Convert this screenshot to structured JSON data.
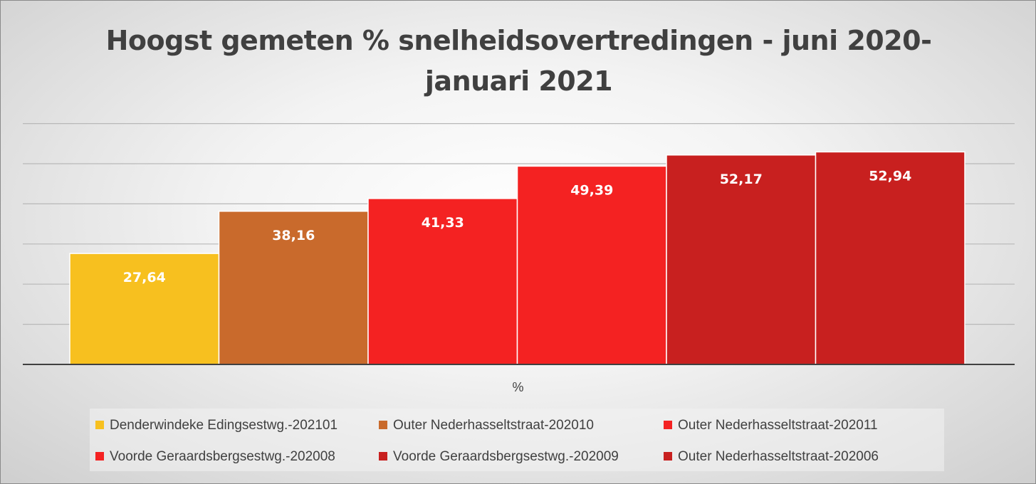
{
  "chart_data": {
    "type": "bar",
    "title": "Hoogst gemeten % snelheidsovertredingen - juni 2020-januari 2021",
    "title_lines": [
      "Hoogst gemeten % snelheidsovertredingen - juni 2020-",
      "januari 2021"
    ],
    "xlabel": "%",
    "ylabel": "",
    "ylim": [
      0,
      60
    ],
    "grid": true,
    "legend_position": "bottom",
    "categories": [
      "%"
    ],
    "series": [
      {
        "name": "Denderwindeke Edingsestwg.-202101",
        "values": [
          27.64
        ],
        "label": "27,64",
        "color": "#f7c01f"
      },
      {
        "name": "Outer Nederhasseltstraat-202010",
        "values": [
          38.16
        ],
        "label": "38,16",
        "color": "#c96a2c"
      },
      {
        "name": "Outer Nederhasseltstraat-202011",
        "values": [
          41.33
        ],
        "label": "41,33",
        "color": "#f42222"
      },
      {
        "name": "Voorde Geraardsbergsestwg.-202008",
        "values": [
          49.39
        ],
        "label": "49,39",
        "color": "#f42222"
      },
      {
        "name": "Voorde Geraardsbergsestwg.-202009",
        "values": [
          52.17
        ],
        "label": "52,17",
        "color": "#c8201f"
      },
      {
        "name": "Outer Nederhasseltstraat-202006",
        "values": [
          52.94
        ],
        "label": "52,94",
        "color": "#c8201f"
      }
    ]
  }
}
